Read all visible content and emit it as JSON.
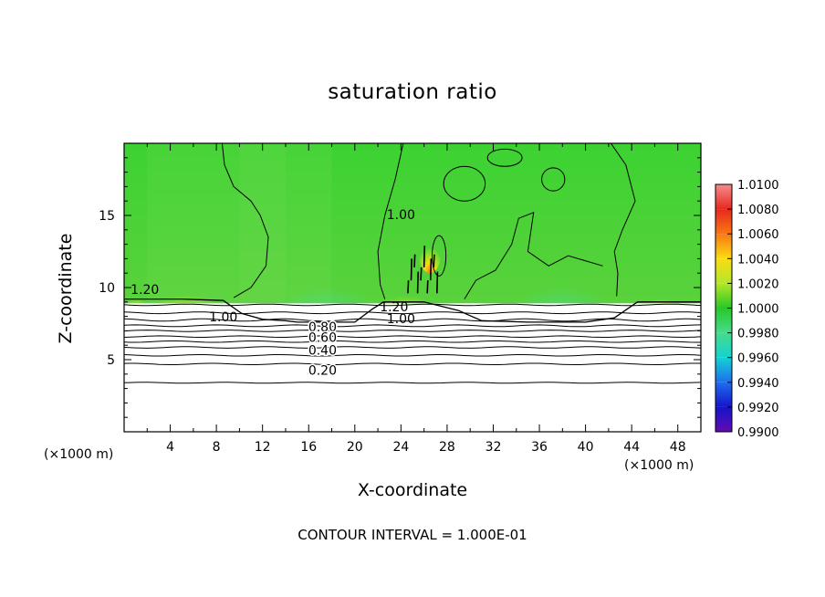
{
  "chart_data": {
    "type": "heatmap",
    "title": "saturation ratio",
    "xlabel": "X-coordinate",
    "ylabel": "Z-coordinate",
    "x_unit": "(×1000 m)",
    "xlim": [
      0,
      50
    ],
    "ylim": [
      0,
      20
    ],
    "x_ticks": [
      4,
      8,
      12,
      16,
      20,
      24,
      28,
      32,
      36,
      40,
      44,
      48
    ],
    "y_ticks": [
      5,
      10,
      15
    ],
    "note": "CONTOUR INTERVAL = 1.000E-01",
    "colorbar": {
      "levels": [
        "1.0100",
        "1.0080",
        "1.0060",
        "1.0040",
        "1.0020",
        "1.0000",
        "0.9980",
        "0.9960",
        "0.9940",
        "0.9920",
        "0.9900"
      ],
      "colors": [
        "#f48c8c",
        "#e8281e",
        "#f87814",
        "#fadc14",
        "#b4e628",
        "#28c828",
        "#46dc8c",
        "#14d2d2",
        "#1e6ef0",
        "#1414c8",
        "#640ab4"
      ]
    },
    "contour_labels": [
      {
        "text": "1.20",
        "x": 1.8,
        "z": 9.8
      },
      {
        "text": "1.00",
        "x": 8.6,
        "z": 7.9
      },
      {
        "text": "0.80",
        "x": 17.2,
        "z": 7.2
      },
      {
        "text": "0.60",
        "x": 17.2,
        "z": 6.5
      },
      {
        "text": "0.40",
        "x": 17.2,
        "z": 5.6
      },
      {
        "text": "0.20",
        "x": 17.2,
        "z": 4.2
      },
      {
        "text": "1.20",
        "x": 23.4,
        "z": 8.6
      },
      {
        "text": "1.00",
        "x": 24.0,
        "z": 7.8
      },
      {
        "text": "1.00",
        "x": 24.0,
        "z": 15.0
      }
    ],
    "contour_levels": [
      0.2,
      0.4,
      0.6,
      0.8,
      1.0,
      1.2
    ]
  }
}
